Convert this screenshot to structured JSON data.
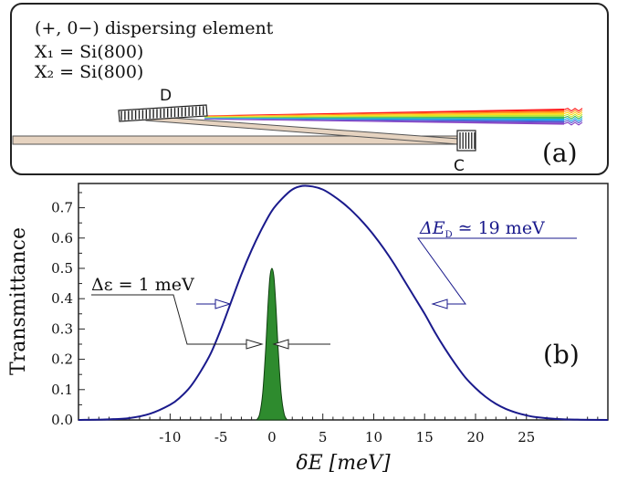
{
  "panel_a": {
    "title": "(+, 0−) dispersing element",
    "x1_label": "X₁ = Si(800)",
    "x2_label": "X₂ = Si(800)",
    "crystal_d_label": "D",
    "crystal_c_label": "C",
    "panel_label": "(a)",
    "rainbow_colors": [
      "#ff0000",
      "#ff7f00",
      "#ffd400",
      "#b5e61d",
      "#22b14c",
      "#00a2e8",
      "#3f48cc",
      "#7b2fbe"
    ]
  },
  "panel_b": {
    "panel_label": "(b)",
    "annotation_narrow": "Δε = 1 meV",
    "annotation_wide_prefix": "ΔE",
    "annotation_wide_subscript": "D",
    "annotation_wide_suffix": "≃ 19 meV",
    "colors": {
      "wide_curve": "#1a1a8c",
      "narrow_fill": "#2e8b2e"
    }
  },
  "chart_data": {
    "type": "line",
    "xlabel": "δE [meV]",
    "ylabel": "Transmittance",
    "xlim": [
      -19,
      33
    ],
    "ylim": [
      0,
      0.78
    ],
    "xticks": [
      -10,
      -5,
      0,
      5,
      10,
      15,
      20,
      25
    ],
    "yticks": [
      0.0,
      0.1,
      0.2,
      0.3,
      0.4,
      0.5,
      0.6,
      0.7
    ],
    "series": [
      {
        "x": [
          -19,
          -16,
          -14,
          -12,
          -10,
          -9,
          -8,
          -7,
          -6,
          -5,
          -4,
          -3,
          -2,
          -1,
          0,
          1,
          2,
          3,
          4,
          5,
          6,
          7,
          8,
          9,
          10,
          11,
          12,
          13,
          14,
          15,
          16,
          17,
          18,
          19,
          20,
          21,
          22,
          23,
          24,
          25,
          26,
          28,
          30,
          33
        ],
        "values": [
          0.0,
          0.002,
          0.006,
          0.02,
          0.05,
          0.075,
          0.11,
          0.16,
          0.22,
          0.3,
          0.39,
          0.48,
          0.56,
          0.63,
          0.69,
          0.73,
          0.76,
          0.772,
          0.77,
          0.76,
          0.74,
          0.715,
          0.685,
          0.65,
          0.61,
          0.565,
          0.515,
          0.46,
          0.405,
          0.35,
          0.29,
          0.235,
          0.185,
          0.14,
          0.105,
          0.076,
          0.053,
          0.036,
          0.024,
          0.015,
          0.009,
          0.003,
          0.001,
          0.0
        ]
      },
      {
        "x": [
          -1.5,
          -1.2,
          -0.9,
          -0.6,
          -0.4,
          -0.2,
          0,
          0.2,
          0.4,
          0.6,
          0.9,
          1.2,
          1.5
        ],
        "values": [
          0.0,
          0.02,
          0.09,
          0.24,
          0.37,
          0.47,
          0.5,
          0.47,
          0.37,
          0.24,
          0.09,
          0.02,
          0.0
        ]
      }
    ]
  }
}
